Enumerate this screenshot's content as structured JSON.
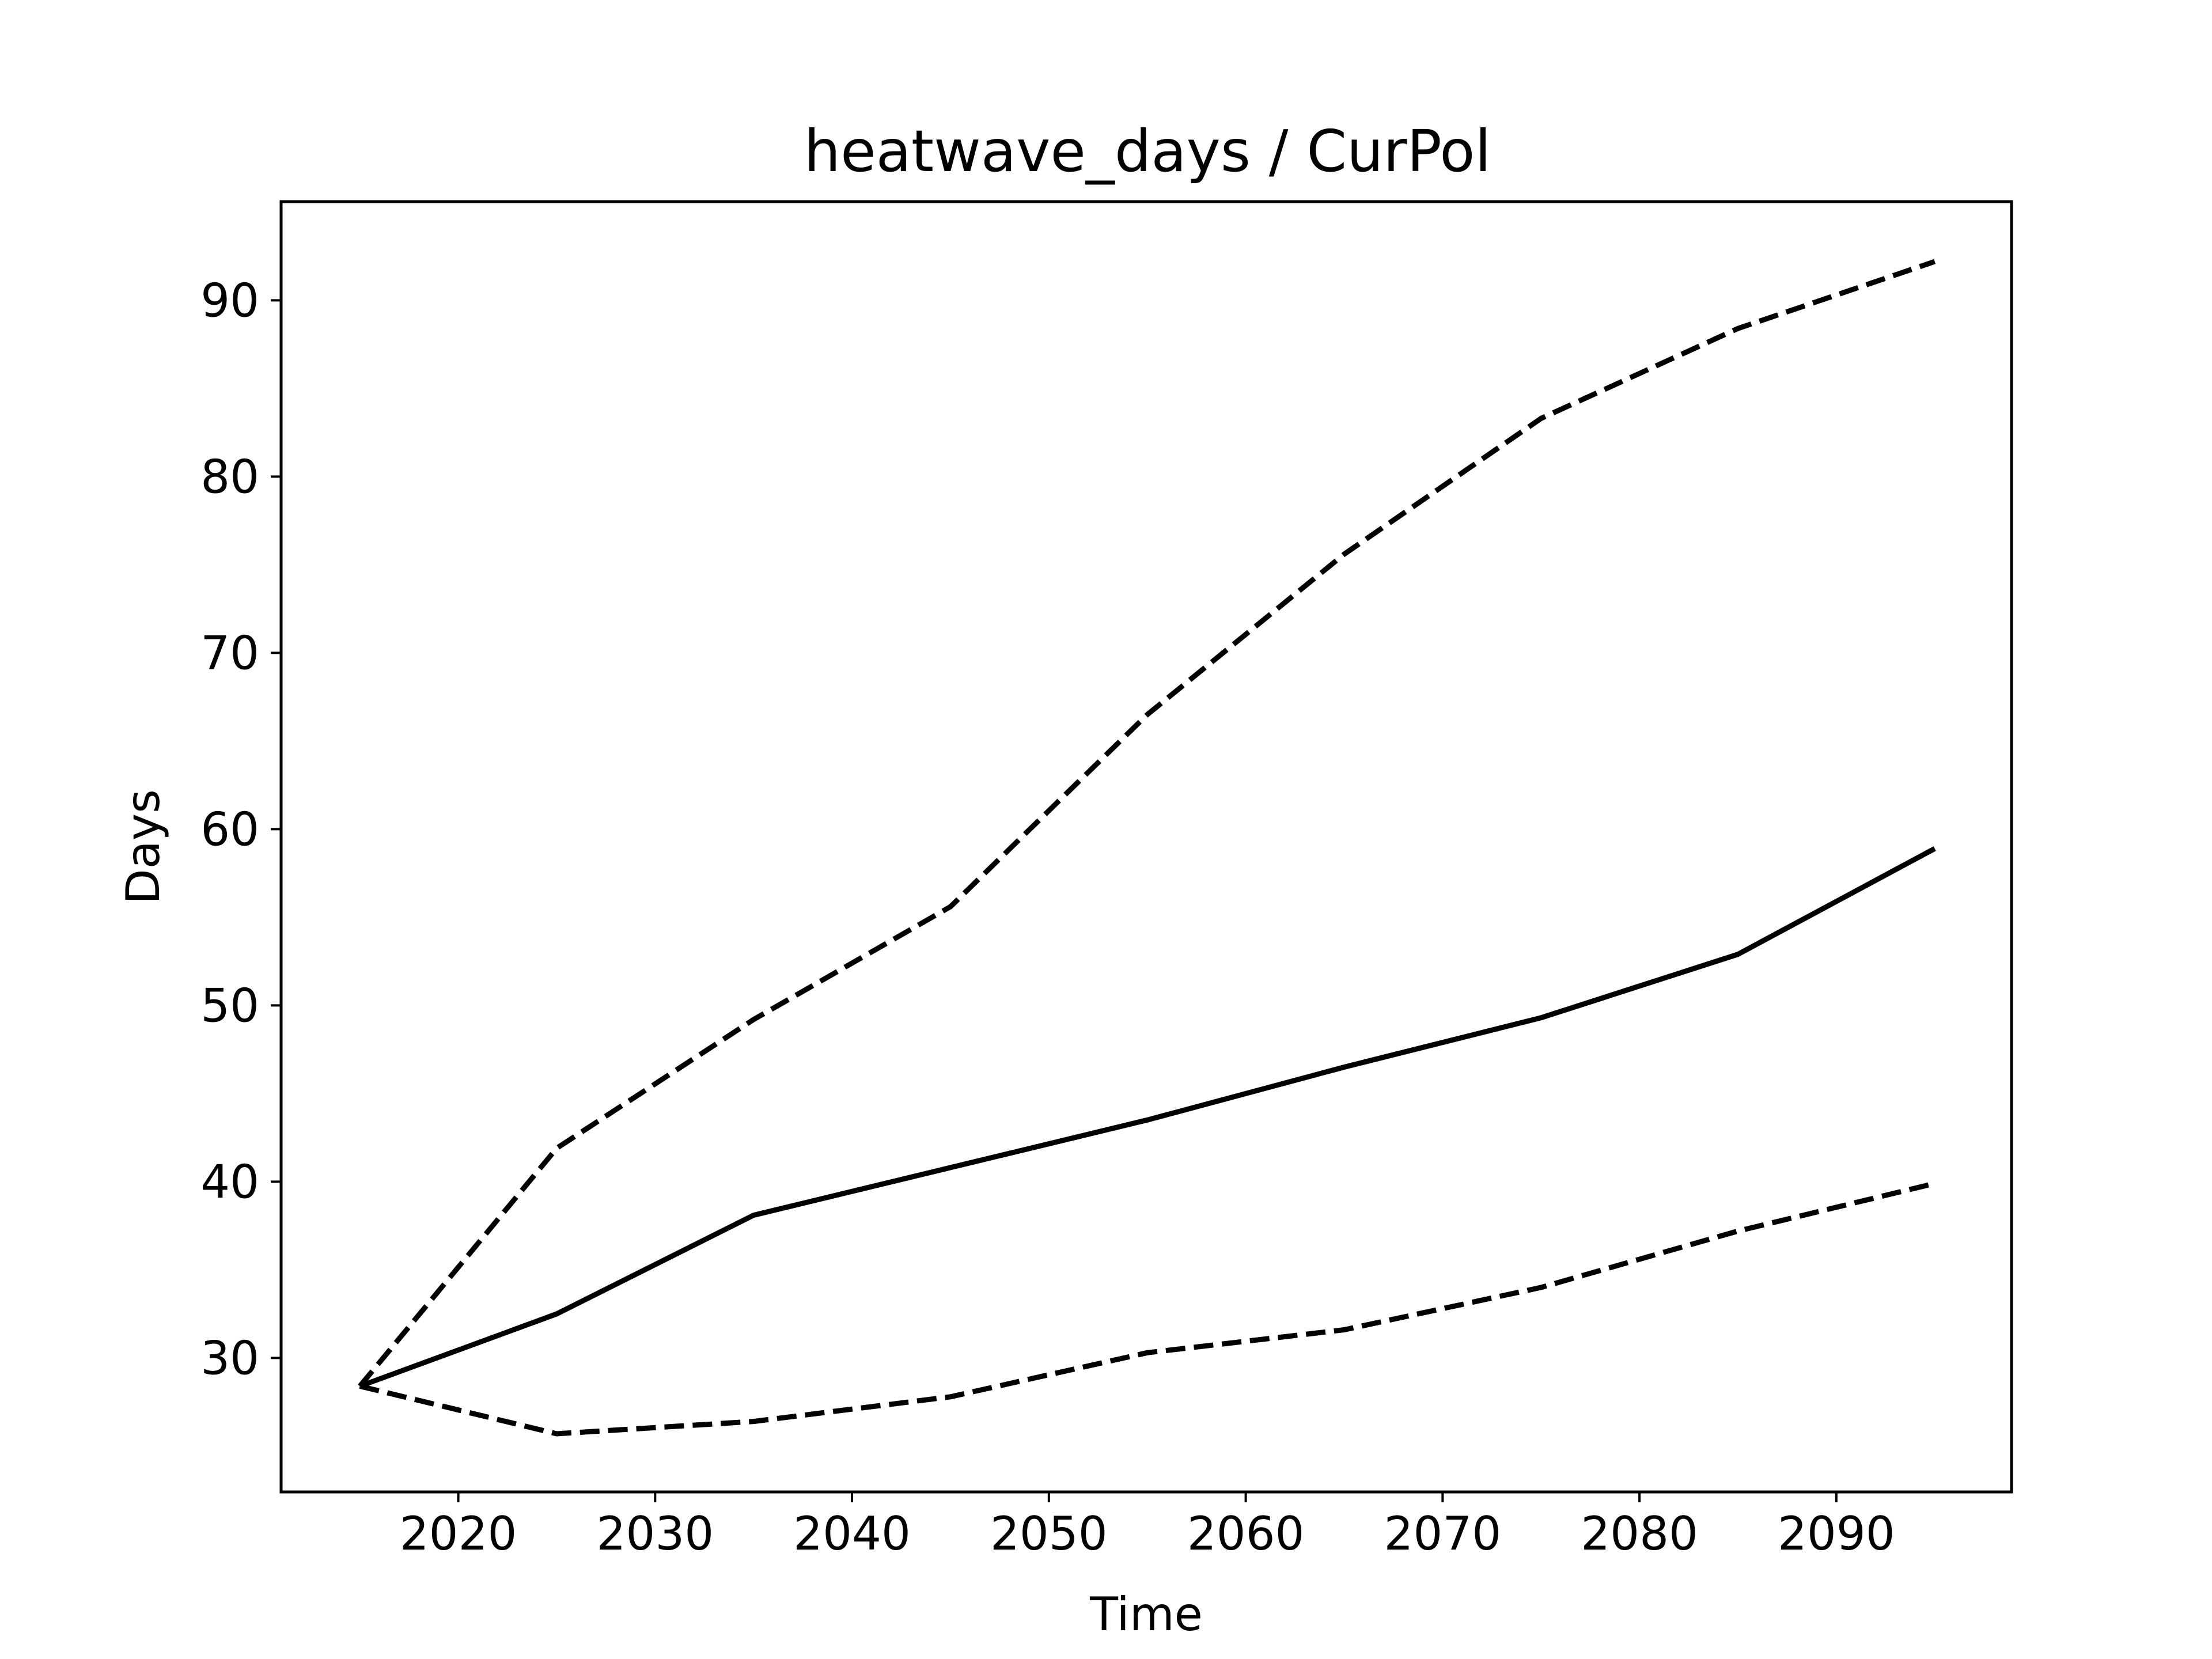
{
  "chart_data": {
    "type": "line",
    "title": "heatwave_days / CurPol",
    "xlabel": "Time",
    "ylabel": "Days",
    "xlim": [
      2011.0,
      2098.9
    ],
    "ylim": [
      22.4,
      95.6
    ],
    "xticks": [
      2020,
      2030,
      2040,
      2050,
      2060,
      2070,
      2080,
      2090
    ],
    "yticks": [
      30,
      40,
      50,
      60,
      70,
      80,
      90
    ],
    "x": [
      2015,
      2025,
      2035,
      2045,
      2055,
      2065,
      2075,
      2085,
      2095
    ],
    "series": [
      {
        "style": "solid",
        "color": "#000000",
        "values": [
          28.4,
          32.5,
          38.1,
          40.8,
          43.5,
          46.5,
          49.3,
          52.9,
          58.9
        ]
      },
      {
        "style": "dashed",
        "color": "#000000",
        "values": [
          28.4,
          41.9,
          49.2,
          55.6,
          66.5,
          75.6,
          83.3,
          88.4,
          92.2
        ]
      },
      {
        "style": "dashed",
        "color": "#000000",
        "values": [
          28.4,
          25.7,
          26.4,
          27.8,
          30.3,
          31.6,
          34.0,
          37.2,
          39.9
        ]
      }
    ],
    "grid": false,
    "legend": "none"
  }
}
